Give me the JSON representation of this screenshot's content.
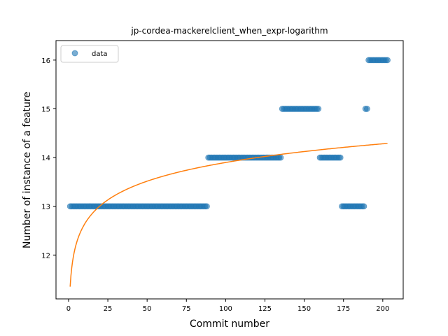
{
  "chart_data": {
    "type": "scatter",
    "title": "jp-cordea-mackerelclient_when_expr-logarithm",
    "xlabel": "Commit number",
    "ylabel": "Number of instance of a feature",
    "xlim": [
      -8,
      213
    ],
    "ylim": [
      11.1,
      16.4
    ],
    "xticks": [
      0,
      25,
      50,
      75,
      100,
      125,
      150,
      175,
      200
    ],
    "xtick_labels": [
      "0",
      "25",
      "50",
      "75",
      "100",
      "125",
      "150",
      "175",
      "200"
    ],
    "yticks": [
      12,
      13,
      14,
      15,
      16
    ],
    "ytick_labels": [
      "12",
      "13",
      "14",
      "15",
      "16"
    ],
    "grid": false,
    "legend": {
      "placement": "top-left",
      "entries": [
        "data"
      ]
    },
    "series": [
      {
        "name": "data",
        "kind": "scatter",
        "color": "#1f77b4",
        "alpha": 0.6,
        "segments": [
          {
            "x_start": 1,
            "x_end": 88,
            "y": 13
          },
          {
            "x_start": 89,
            "x_end": 135,
            "y": 14
          },
          {
            "x_start": 136,
            "x_end": 159,
            "y": 15
          },
          {
            "x_start": 160,
            "x_end": 173,
            "y": 14
          },
          {
            "x_start": 174,
            "x_end": 188,
            "y": 13
          },
          {
            "x_start": 189,
            "x_end": 190,
            "y": 15
          },
          {
            "x_start": 191,
            "x_end": 203,
            "y": 16
          }
        ]
      },
      {
        "kind": "line",
        "color": "#ff7f0e",
        "fit": {
          "model": "logarithmic",
          "a": 11.35,
          "b": 0.5535,
          "x_start": 1,
          "x_end": 203
        }
      }
    ]
  }
}
